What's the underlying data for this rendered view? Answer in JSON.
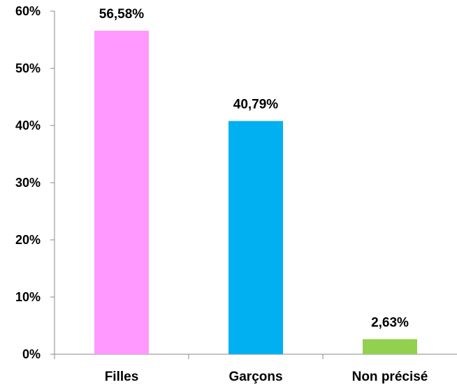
{
  "chart_data": {
    "type": "bar",
    "categories": [
      "Filles",
      "Garçons",
      "Non précisé"
    ],
    "values": [
      56.58,
      40.79,
      2.63
    ],
    "data_labels": [
      "56,58%",
      "40,79%",
      "2,63%"
    ],
    "colors": [
      "#FF99FF",
      "#00B0F0",
      "#92D050"
    ],
    "ylim": [
      0,
      60
    ],
    "yticks": [
      0,
      10,
      20,
      30,
      40,
      50,
      60
    ],
    "ytick_labels": [
      "0%",
      "10%",
      "20%",
      "30%",
      "40%",
      "50%",
      "60%"
    ],
    "title": "",
    "xlabel": "",
    "ylabel": "",
    "grid": false,
    "legend": "none"
  }
}
